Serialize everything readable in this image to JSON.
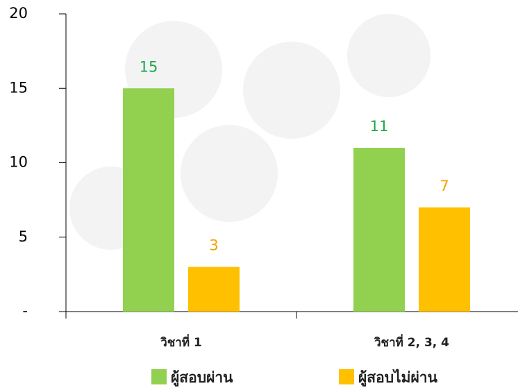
{
  "chart_data": {
    "type": "bar",
    "categories": [
      "วิชาที่ 1",
      "วิชาที่ 2, 3, 4"
    ],
    "series": [
      {
        "name": "ผู้สอบผ่าน",
        "color": "#92d050",
        "label_color": "#1aa84a",
        "values": [
          15,
          11
        ]
      },
      {
        "name": "ผู้สอบไม่ผ่าน",
        "color": "#ffc000",
        "label_color": "#f5a000",
        "values": [
          3,
          7
        ]
      }
    ],
    "ylim": [
      0,
      20
    ],
    "yticks": [
      {
        "value": 0,
        "label": "-"
      },
      5,
      10,
      15,
      20
    ],
    "grid": false
  }
}
